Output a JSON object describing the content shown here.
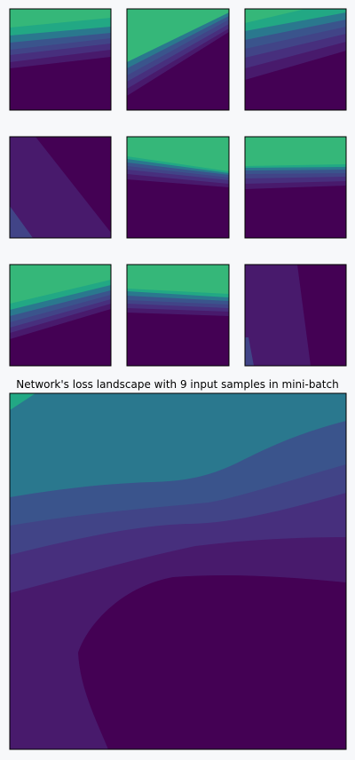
{
  "figure": {
    "background": "#f7f8fa",
    "frame_color": "#000000",
    "title_color": "#000000"
  },
  "palette": {
    "level_0": "#440154",
    "level_1": "#481a6c",
    "level_2": "#472f7d",
    "level_3": "#414487",
    "level_4": "#3a548c",
    "level_5": "#2a788e",
    "level_6": "#22a884",
    "level_7": "#35b779"
  },
  "chart_data": [
    {
      "type": "heatmap",
      "subplot": "1,1",
      "title": "",
      "axes_visible": false,
      "style": "contourf",
      "pattern": "horizontal bands, high values at top"
    },
    {
      "type": "heatmap",
      "subplot": "1,2",
      "title": "",
      "axes_visible": false,
      "style": "contourf",
      "pattern": "diagonal bands, high values at top-left"
    },
    {
      "type": "heatmap",
      "subplot": "1,3",
      "title": "",
      "axes_visible": false,
      "style": "contourf",
      "pattern": "diagonal bands, high values at top"
    },
    {
      "type": "heatmap",
      "subplot": "2,1",
      "title": "",
      "axes_visible": false,
      "style": "contourf",
      "pattern": "low values, slanted regions"
    },
    {
      "type": "heatmap",
      "subplot": "2,2",
      "title": "",
      "axes_visible": false,
      "style": "contourf",
      "pattern": "horizontal bands, high values at top"
    },
    {
      "type": "heatmap",
      "subplot": "2,3",
      "title": "",
      "axes_visible": false,
      "style": "contourf",
      "pattern": "horizontal bands, high values at top"
    },
    {
      "type": "heatmap",
      "subplot": "3,1",
      "title": "",
      "axes_visible": false,
      "style": "contourf",
      "pattern": "diagonal bands, high values at top"
    },
    {
      "type": "heatmap",
      "subplot": "3,2",
      "title": "",
      "axes_visible": false,
      "style": "contourf",
      "pattern": "horizontal bands, high values at top"
    },
    {
      "type": "heatmap",
      "subplot": "3,3",
      "title": "",
      "axes_visible": false,
      "style": "contourf",
      "pattern": "low values, near-vertical regions"
    },
    {
      "type": "heatmap",
      "subplot": "main",
      "title": "Network's loss landscape with 9 input samples in mini-batch",
      "axes_visible": false,
      "style": "contourf",
      "pattern": "loss decreases from top to lower-right basin"
    }
  ]
}
